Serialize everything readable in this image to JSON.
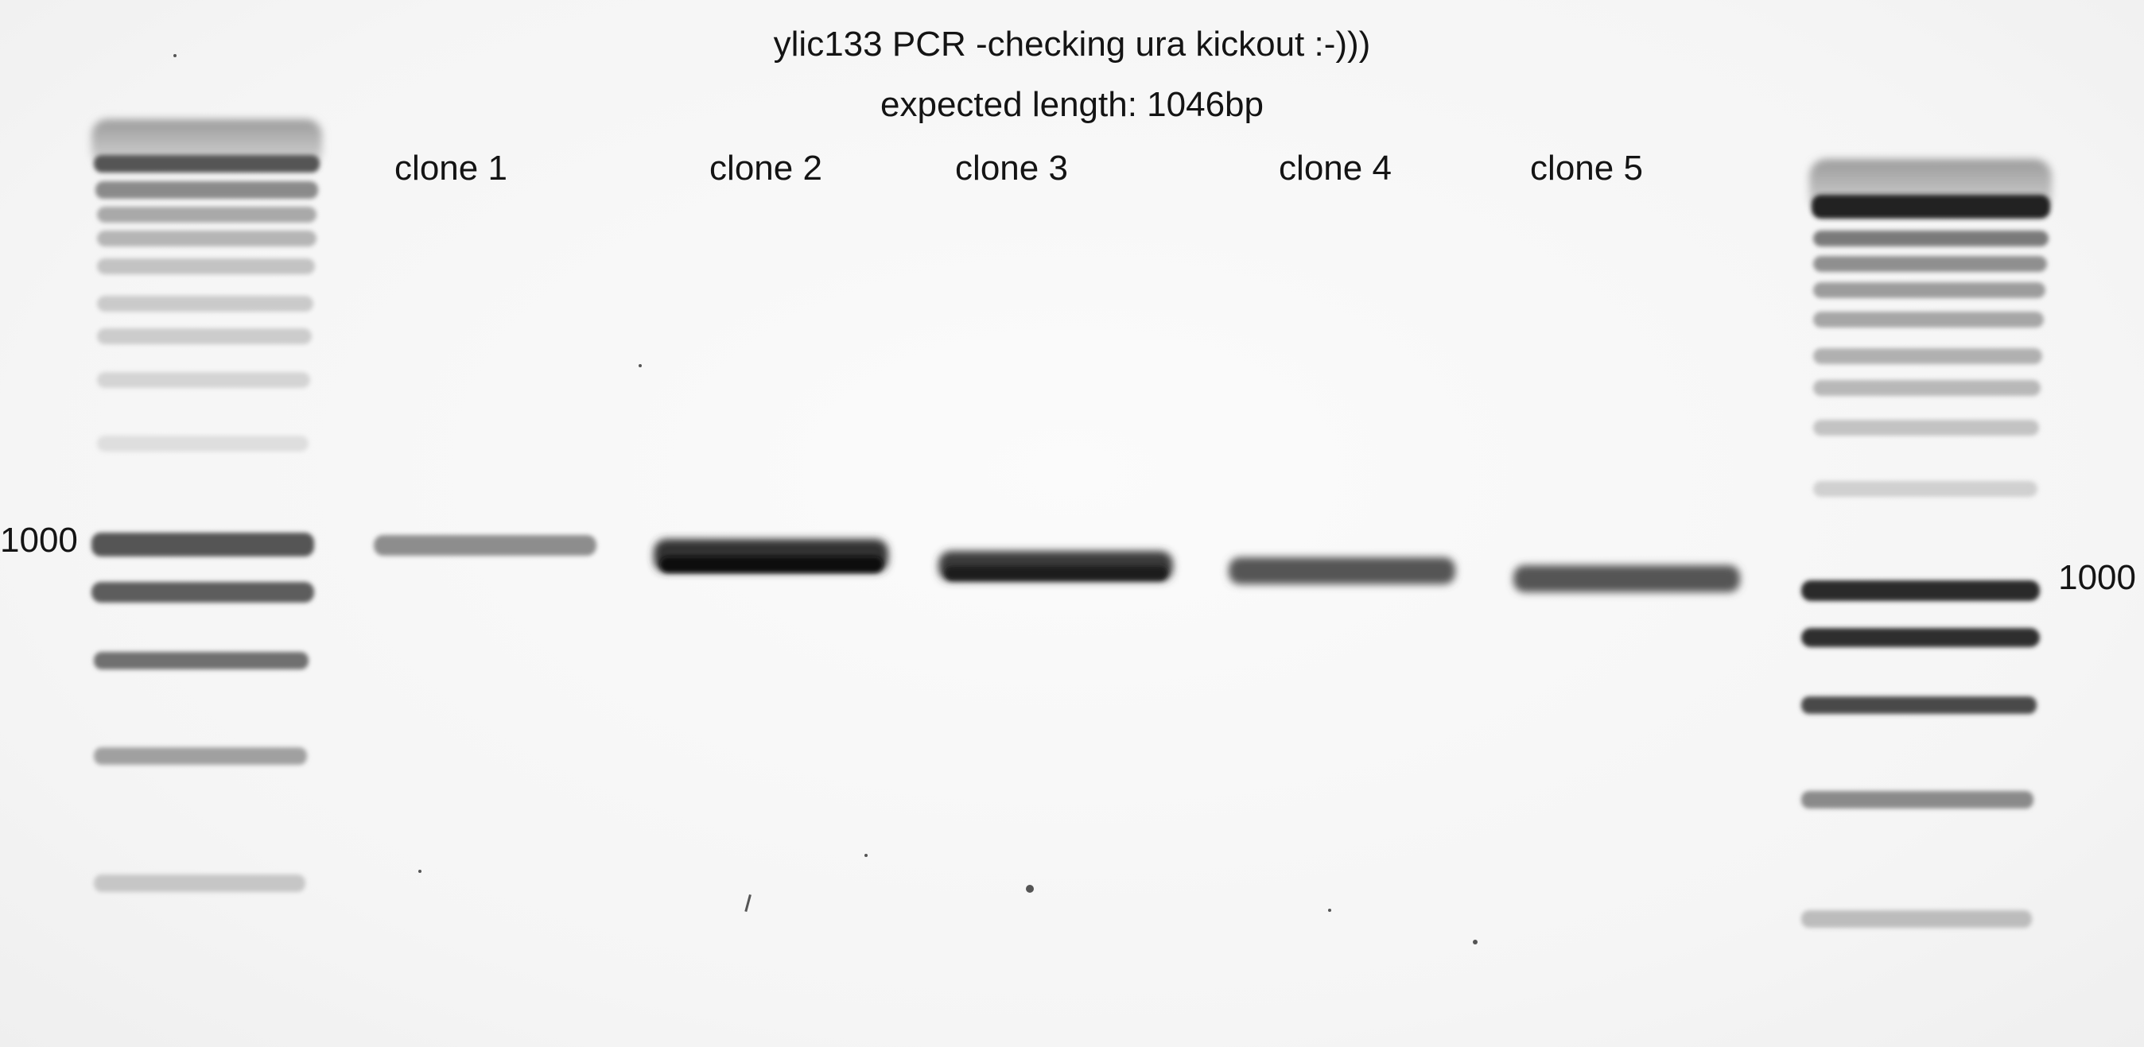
{
  "title": "ylic133 PCR -checking ura kickout :-)))",
  "subtitle": "expected length: 1046bp",
  "lanes": [
    {
      "label": "clone 1"
    },
    {
      "label": "clone 2"
    },
    {
      "label": "clone 3"
    },
    {
      "label": "clone 4"
    },
    {
      "label": "clone 5"
    }
  ],
  "ladder_marks": {
    "left": "1000",
    "right": "1000"
  }
}
